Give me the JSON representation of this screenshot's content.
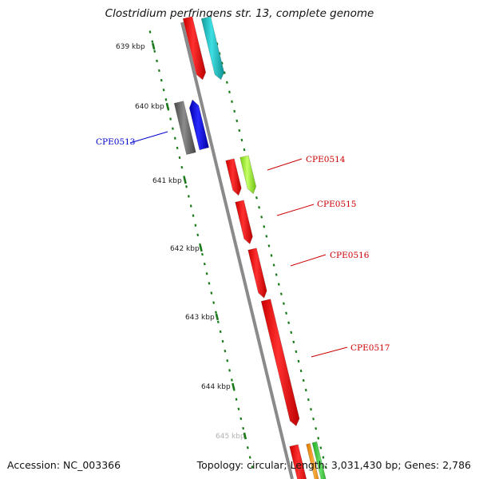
{
  "title": "Clostridium perfringens str. 13, complete genome",
  "footer": {
    "accession": "Accession: NC_003366",
    "topology": "Topology: circular; Length: 3,031,430 bp; Genes: 2,786"
  },
  "ticks": [
    "639 kbp",
    "640 kbp",
    "641 kbp",
    "642 kbp",
    "643 kbp",
    "644 kbp",
    "645 kbp"
  ],
  "genes": [
    {
      "label": "CPE0513",
      "color": "#0000cc"
    },
    {
      "label": "CPE0514",
      "color": "#cc0000"
    },
    {
      "label": "CPE0515",
      "color": "#cc0000"
    },
    {
      "label": "CPE0516",
      "color": "#cc0000"
    },
    {
      "label": "CPE0517",
      "color": "#cc0000"
    }
  ],
  "colors": {
    "backbone": "#8a8a8a",
    "gene_red": "#ff0000",
    "gene_blue": "#0000ff",
    "gene_gray": "#6b6b6b",
    "gene_cyan": "#1cc8cc",
    "gene_lime": "#99ff33",
    "gene_orange": "#ff9900",
    "gene_green": "#33cc33",
    "tick_green": "#1a7a1a"
  }
}
